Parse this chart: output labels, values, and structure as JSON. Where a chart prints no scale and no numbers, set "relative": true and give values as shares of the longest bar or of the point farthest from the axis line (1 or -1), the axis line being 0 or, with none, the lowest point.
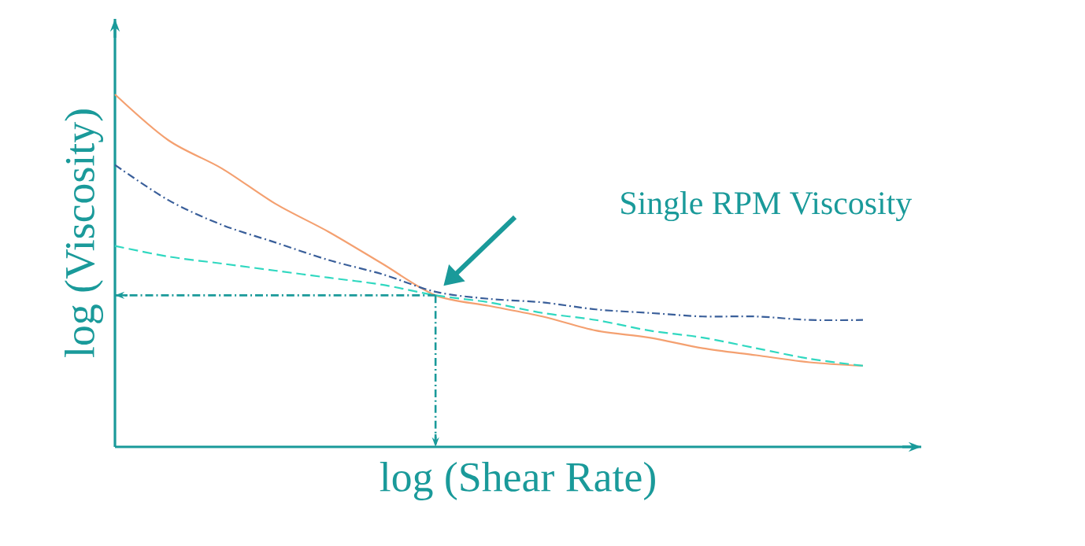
{
  "chart_data": {
    "type": "line",
    "relative": true,
    "xlabel": "log (Shear Rate)",
    "ylabel": "log (Viscosity)",
    "categories": [
      null,
      null,
      null,
      null,
      null,
      null,
      null,
      null,
      null,
      null,
      null,
      null,
      null,
      null,
      null
    ],
    "series": [
      {
        "color": "#f4a070",
        "line_style": "solid",
        "values": [
          1,
          0.87,
          0.79,
          0.69,
          0.61,
          0.52,
          0.43,
          0.4,
          0.37,
          0.33,
          0.31,
          0.28,
          0.26,
          0.24,
          0.23
        ]
      },
      {
        "color": "#3a5f9a",
        "line_style": "dashdot",
        "values": [
          0.8,
          0.7,
          0.63,
          0.58,
          0.53,
          0.49,
          0.44,
          0.42,
          0.41,
          0.39,
          0.38,
          0.37,
          0.37,
          0.36,
          0.36
        ]
      },
      {
        "color": "#30d8c0",
        "line_style": "dashed",
        "values": [
          0.57,
          0.54,
          0.52,
          0.5,
          0.48,
          0.46,
          0.43,
          0.41,
          0.38,
          0.36,
          0.33,
          0.31,
          0.28,
          0.25,
          0.23
        ]
      }
    ],
    "ref_lines": [
      {
        "axis": "y",
        "value": 0.43,
        "color": "#1a9a9a",
        "line_style": "dashdot"
      }
    ],
    "annotations": [
      "Single RPM Viscosity"
    ],
    "marker": "none"
  }
}
